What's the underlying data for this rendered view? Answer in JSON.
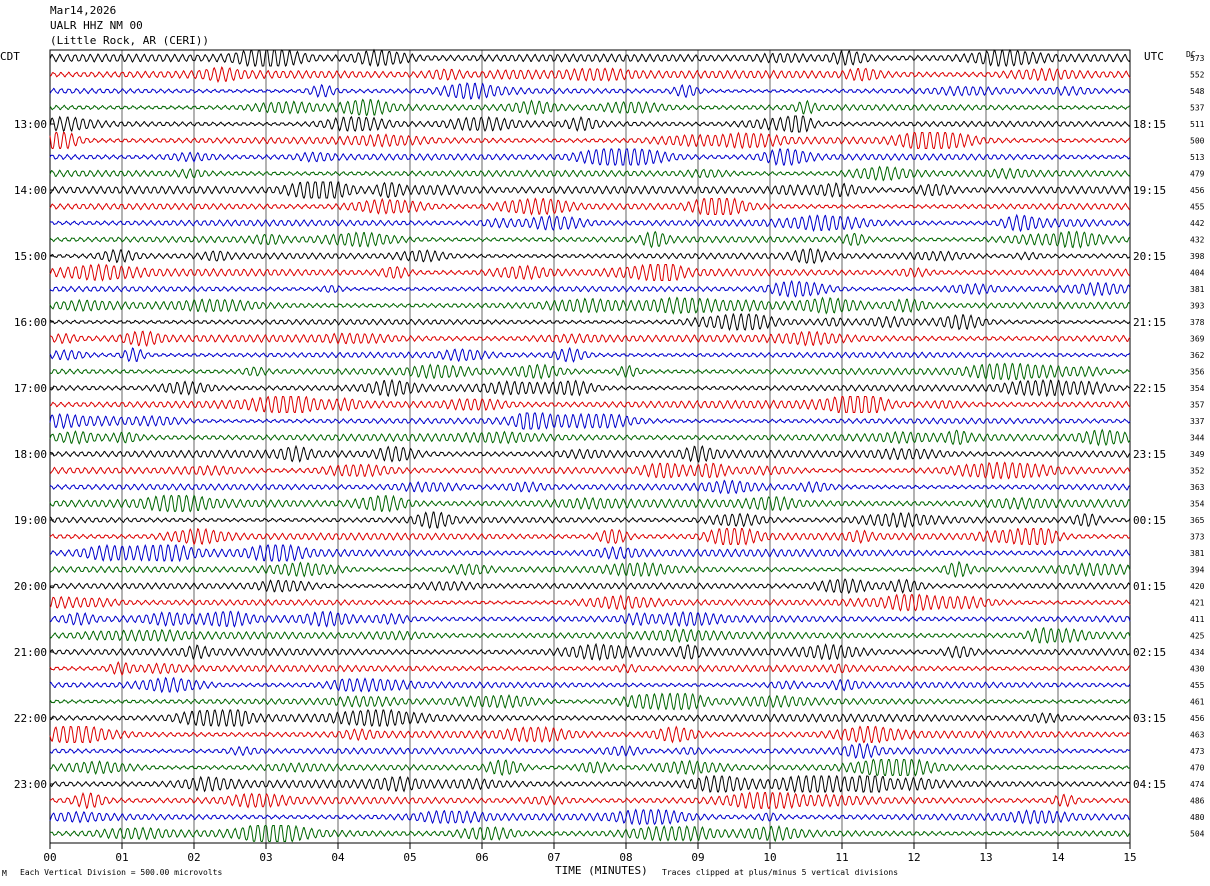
{
  "header": {
    "date": "Mar14,2026",
    "station": "UALR HHZ NM 00",
    "location": "(Little Rock, AR (CERI))"
  },
  "chart_data": {
    "type": "line",
    "title": "Mar14,2026",
    "xlabel": "TIME (MINUTES)",
    "xlim": [
      0,
      15
    ],
    "x_ticks": [
      "00",
      "01",
      "02",
      "03",
      "04",
      "05",
      "06",
      "07",
      "08",
      "09",
      "10",
      "11",
      "12",
      "13",
      "14",
      "15"
    ],
    "left_axis_label": "CDT",
    "right_axis_label": "UTC",
    "dc_label": "DC",
    "left_times": [
      "13:00",
      "14:00",
      "15:00",
      "16:00",
      "17:00",
      "18:00",
      "19:00",
      "20:00",
      "21:00",
      "22:00",
      "23:00"
    ],
    "right_times": [
      "18:15",
      "19:15",
      "20:15",
      "21:15",
      "22:15",
      "23:15",
      "00:15",
      "01:15",
      "02:15",
      "03:15",
      "04:15"
    ],
    "time_label_every_n_traces": 4,
    "time_label_first_trace": 4,
    "trace_colors": [
      "#000000",
      "#dd0000",
      "#0000cc",
      "#006600"
    ],
    "dc_offsets": [
      573,
      552,
      548,
      537,
      511,
      500,
      513,
      479,
      456,
      455,
      442,
      432,
      398,
      404,
      381,
      393,
      378,
      369,
      362,
      356,
      354,
      357,
      337,
      344,
      349,
      352,
      363,
      354,
      365,
      373,
      381,
      394,
      420,
      421,
      411,
      425,
      434,
      430,
      455,
      461,
      456,
      463,
      473,
      470,
      474,
      486,
      480,
      504
    ],
    "footer": {
      "vertical_division": "Each Vertical Division =  500.00 microvolts",
      "clip_note": "Traces clipped at plus/minus 5 vertical divisions"
    }
  }
}
